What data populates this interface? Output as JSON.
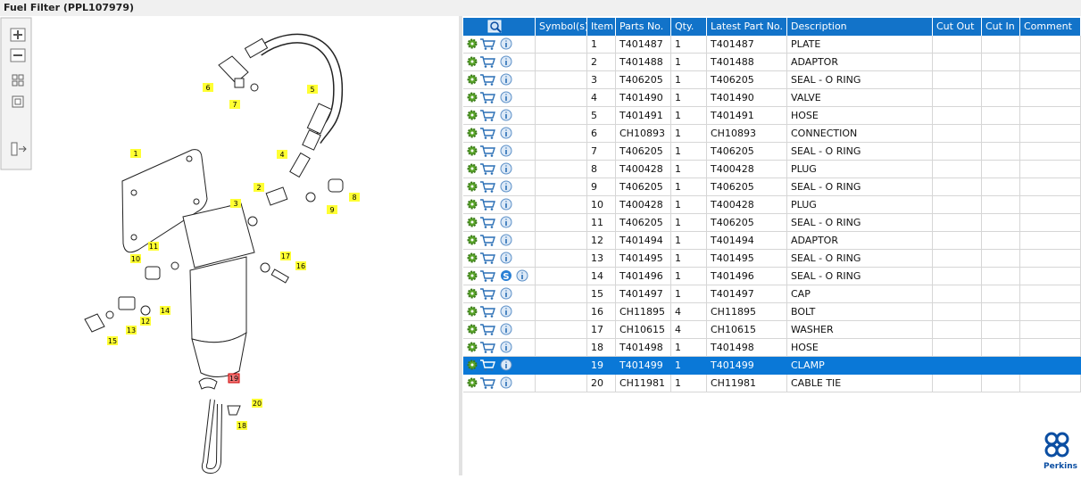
{
  "header": {
    "title": "Fuel Filter (PPL107979)"
  },
  "diagram": {
    "callouts": [
      "1",
      "2",
      "3",
      "4",
      "5",
      "6",
      "7",
      "8",
      "9",
      "10",
      "11",
      "12",
      "13",
      "14",
      "15",
      "16",
      "17",
      "18",
      "19",
      "20"
    ]
  },
  "table": {
    "columns": [
      "Symbol(s)",
      "Item",
      "Parts No.",
      "Qty.",
      "Latest Part No.",
      "Description",
      "Cut Out",
      "Cut In",
      "Comment"
    ],
    "rows": [
      {
        "item": "1",
        "part_no": "T401487",
        "qty": "1",
        "latest_part_no": "T401487",
        "description": "PLATE"
      },
      {
        "item": "2",
        "part_no": "T401488",
        "qty": "1",
        "latest_part_no": "T401488",
        "description": "ADAPTOR"
      },
      {
        "item": "3",
        "part_no": "T406205",
        "qty": "1",
        "latest_part_no": "T406205",
        "description": "SEAL - O RING"
      },
      {
        "item": "4",
        "part_no": "T401490",
        "qty": "1",
        "latest_part_no": "T401490",
        "description": "VALVE"
      },
      {
        "item": "5",
        "part_no": "T401491",
        "qty": "1",
        "latest_part_no": "T401491",
        "description": "HOSE"
      },
      {
        "item": "6",
        "part_no": "CH10893",
        "qty": "1",
        "latest_part_no": "CH10893",
        "description": "CONNECTION"
      },
      {
        "item": "7",
        "part_no": "T406205",
        "qty": "1",
        "latest_part_no": "T406205",
        "description": "SEAL - O RING"
      },
      {
        "item": "8",
        "part_no": "T400428",
        "qty": "1",
        "latest_part_no": "T400428",
        "description": "PLUG"
      },
      {
        "item": "9",
        "part_no": "T406205",
        "qty": "1",
        "latest_part_no": "T406205",
        "description": "SEAL - O RING"
      },
      {
        "item": "10",
        "part_no": "T400428",
        "qty": "1",
        "latest_part_no": "T400428",
        "description": "PLUG"
      },
      {
        "item": "11",
        "part_no": "T406205",
        "qty": "1",
        "latest_part_no": "T406205",
        "description": "SEAL - O RING"
      },
      {
        "item": "12",
        "part_no": "T401494",
        "qty": "1",
        "latest_part_no": "T401494",
        "description": "ADAPTOR"
      },
      {
        "item": "13",
        "part_no": "T401495",
        "qty": "1",
        "latest_part_no": "T401495",
        "description": "SEAL - O RING"
      },
      {
        "item": "14",
        "part_no": "T401496",
        "qty": "1",
        "latest_part_no": "T401496",
        "description": "SEAL - O RING",
        "badge": "S"
      },
      {
        "item": "15",
        "part_no": "T401497",
        "qty": "1",
        "latest_part_no": "T401497",
        "description": "CAP"
      },
      {
        "item": "16",
        "part_no": "CH11895",
        "qty": "4",
        "latest_part_no": "CH11895",
        "description": "BOLT"
      },
      {
        "item": "17",
        "part_no": "CH10615",
        "qty": "4",
        "latest_part_no": "CH10615",
        "description": "WASHER"
      },
      {
        "item": "18",
        "part_no": "T401498",
        "qty": "1",
        "latest_part_no": "T401498",
        "description": "HOSE"
      },
      {
        "item": "19",
        "part_no": "T401499",
        "qty": "1",
        "latest_part_no": "T401499",
        "description": "CLAMP"
      },
      {
        "item": "20",
        "part_no": "CH11981",
        "qty": "1",
        "latest_part_no": "CH11981",
        "description": "CABLE TIE"
      }
    ]
  },
  "logo": {
    "text": "Perkins"
  }
}
